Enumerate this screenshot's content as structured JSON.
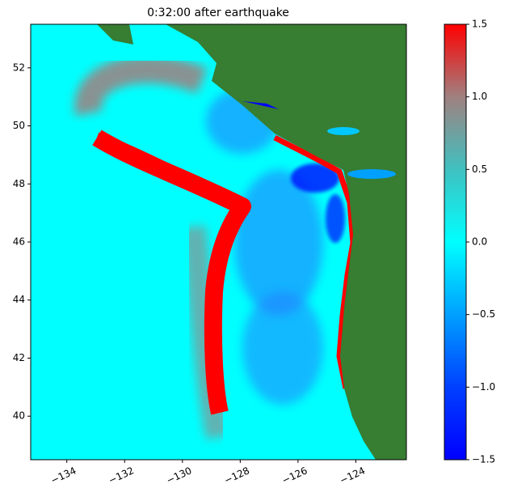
{
  "chart_data": {
    "type": "image",
    "title": "0:32:00 after earthquake",
    "xlim": [
      -135.25,
      -122.25
    ],
    "xticks": [
      {
        "value": -134,
        "label": "−134"
      },
      {
        "value": -132,
        "label": "−132"
      },
      {
        "value": -130,
        "label": "−130"
      },
      {
        "value": -128,
        "label": "−128"
      },
      {
        "value": -126,
        "label": "−126"
      },
      {
        "value": -124,
        "label": "−124"
      }
    ],
    "ylim": [
      38.5,
      53.5
    ],
    "yticks": [
      40,
      42,
      44,
      46,
      48,
      50,
      52
    ],
    "clim": [
      -1.5,
      1.5
    ],
    "cticks": [
      {
        "value": -1.5,
        "label": "−1.5"
      },
      {
        "value": -1.0,
        "label": "−1.0"
      },
      {
        "value": -0.5,
        "label": "−0.5"
      },
      {
        "value": 0.0,
        "label": "0.0"
      },
      0.5,
      {
        "value": 1.0,
        "label": "1.0"
      },
      1.5
    ],
    "colormap": [
      "#0000ff",
      "#0040ff",
      "#00a0ff",
      "#00ffff",
      "#40c0c0",
      "#a08080",
      "#ff0000"
    ],
    "land_color": "#377d32"
  }
}
